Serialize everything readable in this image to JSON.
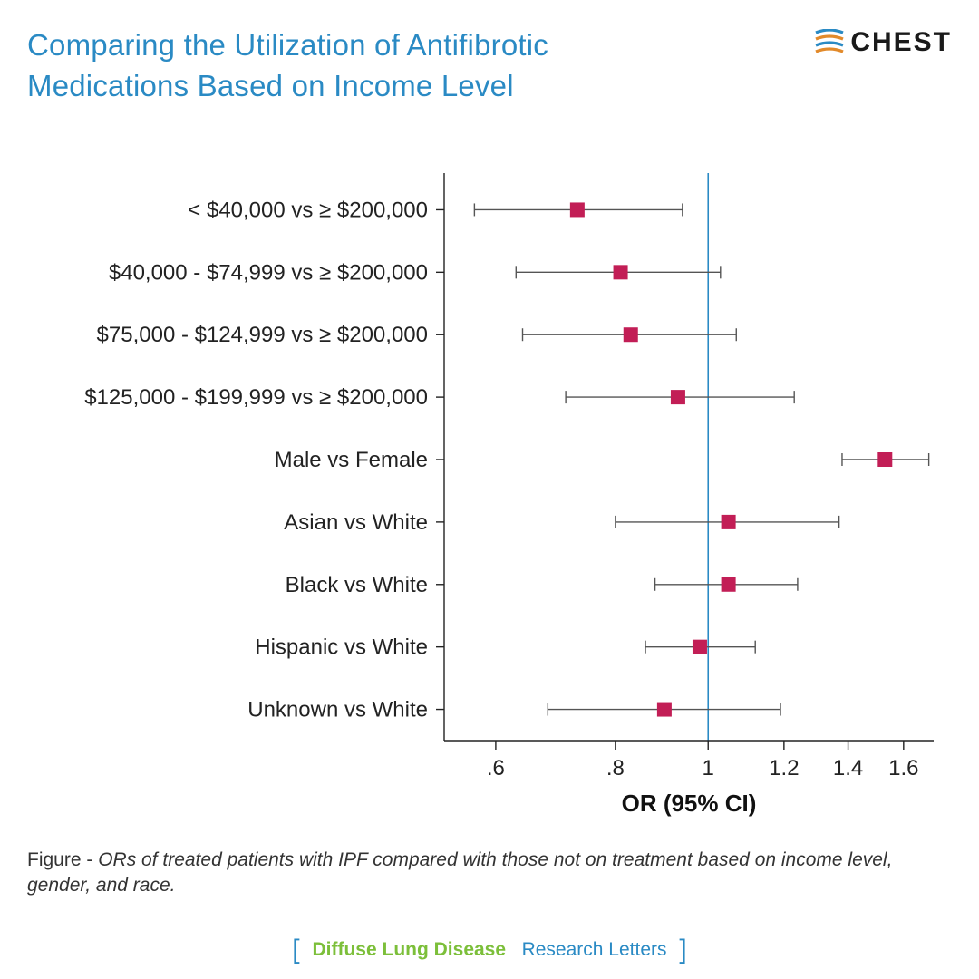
{
  "title": "Comparing the Utilization of Antifibrotic Medications Based on Income Level",
  "brand": "CHEST",
  "chart": {
    "type": "forest",
    "x_axis": {
      "title": "OR (95% CI)",
      "scale": "log",
      "min": 0.53,
      "max": 1.72,
      "ticks": [
        0.6,
        0.8,
        1.0,
        1.2,
        1.4,
        1.6
      ],
      "tick_labels": [
        ".6",
        ".8",
        "1",
        "1.2",
        "1.4",
        "1.6"
      ],
      "title_fontsize": 26,
      "tick_fontsize": 24
    },
    "reference_line": 1.0,
    "reference_line_color": "#2a8ac4",
    "axis_color": "#222222",
    "whisker_color": "#555555",
    "point_color": "#c21e56",
    "point_size": 16,
    "label_fontsize": 24,
    "rows": [
      {
        "label": "< $40,000 vs ≥ $200,000",
        "or": 0.73,
        "lo": 0.57,
        "hi": 0.94
      },
      {
        "label": "$40,000 - $74,999 vs ≥ $200,000",
        "or": 0.81,
        "lo": 0.63,
        "hi": 1.03
      },
      {
        "label": "$75,000 - $124,999 vs ≥ $200,000",
        "or": 0.83,
        "lo": 0.64,
        "hi": 1.07
      },
      {
        "label": "$125,000 - $199,999 vs ≥ $200,000",
        "or": 0.93,
        "lo": 0.71,
        "hi": 1.23
      },
      {
        "label": "Male vs Female",
        "or": 1.53,
        "lo": 1.38,
        "hi": 1.7
      },
      {
        "label": "Asian vs White",
        "or": 1.05,
        "lo": 0.8,
        "hi": 1.37
      },
      {
        "label": "Black vs White",
        "or": 1.05,
        "lo": 0.88,
        "hi": 1.24
      },
      {
        "label": "Hispanic vs White",
        "or": 0.98,
        "lo": 0.86,
        "hi": 1.12
      },
      {
        "label": "Unknown vs White",
        "or": 0.9,
        "lo": 0.68,
        "hi": 1.19
      }
    ]
  },
  "caption_lead": "Figure - ",
  "caption_body": "ORs of treated patients with IPF compared with those not on treatment based on income level, gender, and race.",
  "footer": {
    "tag1": "Diffuse Lung Disease",
    "tag2": "Research Letters"
  },
  "colors": {
    "title": "#2a8ac4",
    "tag_green": "#7cbf3a",
    "tag_blue": "#2a8ac4",
    "background": "#ffffff"
  }
}
